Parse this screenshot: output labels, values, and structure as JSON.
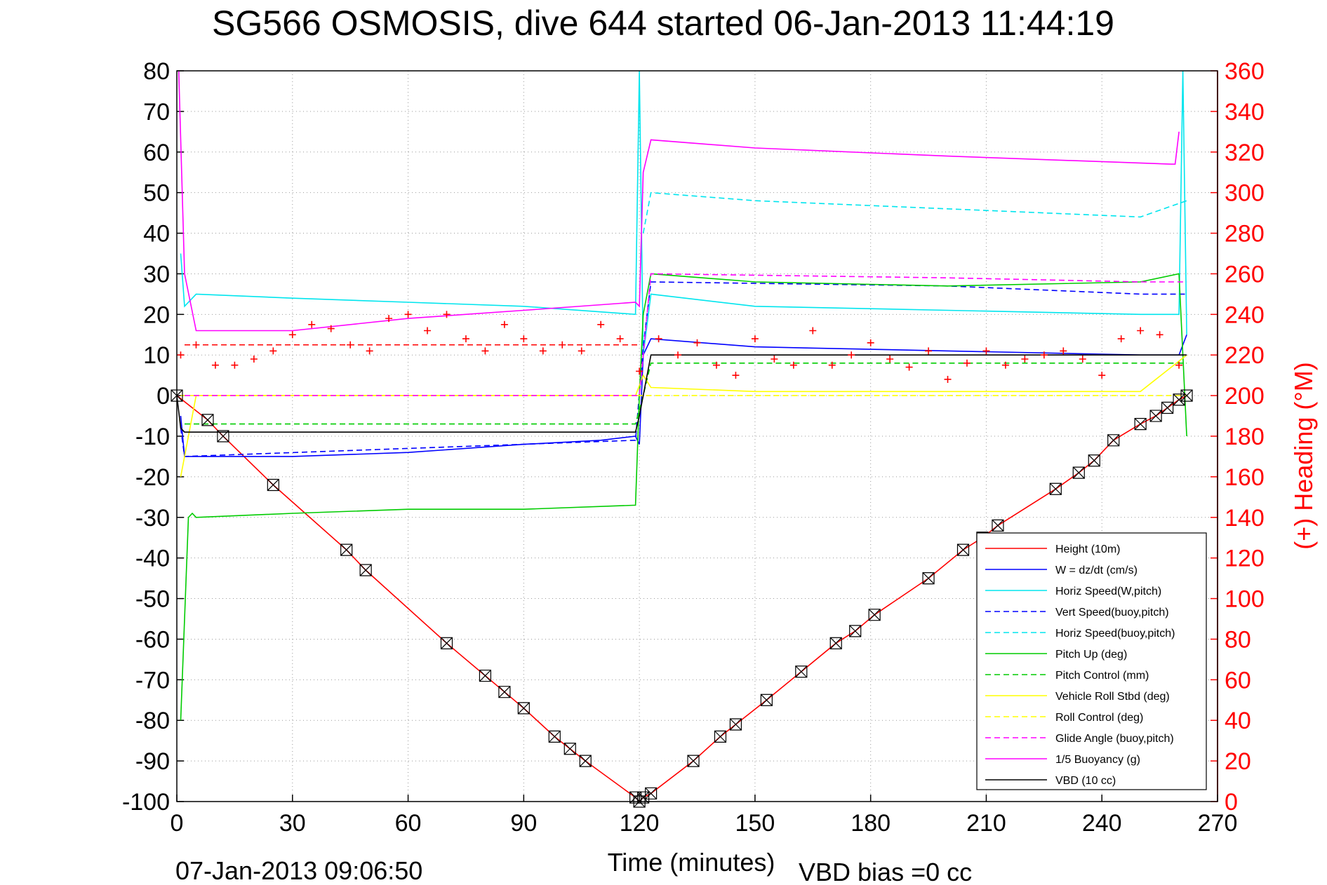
{
  "chart_data": {
    "type": "line",
    "title": "SG566 OSMOSIS, dive 644 started 06-Jan-2013 11:44:19",
    "xlabel": "Time (minutes)",
    "ylabel": "",
    "ylabel_right": "(+) Heading (°M)",
    "xlim": [
      0,
      270
    ],
    "ylim": [
      -100,
      80
    ],
    "ylim_right": [
      0,
      360
    ],
    "x_ticks": [
      0,
      30,
      60,
      90,
      120,
      150,
      180,
      210,
      240,
      270
    ],
    "y_ticks": [
      80,
      70,
      60,
      50,
      40,
      30,
      20,
      10,
      0,
      -10,
      -20,
      -30,
      -40,
      -50,
      -60,
      -70,
      -80,
      -90,
      -100
    ],
    "y_ticks_right": [
      360,
      340,
      320,
      300,
      280,
      260,
      240,
      220,
      200,
      180,
      160,
      140,
      120,
      100,
      80,
      60,
      40,
      20,
      0
    ],
    "grid": true,
    "legend_position": "bottom-right",
    "footer_left": "07-Jan-2013 09:06:50",
    "footer_right": "VBD bias =0 cc",
    "series": [
      {
        "name": "Height (10m)",
        "color": "#ff0000",
        "style": "solid",
        "x": [
          0,
          8,
          12,
          25,
          44,
          49,
          70,
          80,
          85,
          90,
          98,
          102,
          106,
          119,
          120,
          121,
          123,
          134,
          141,
          145,
          153,
          162,
          171,
          176,
          181,
          195,
          204,
          209,
          213,
          228,
          234,
          238,
          243,
          250,
          254,
          257,
          260,
          262
        ],
        "y": [
          0,
          -6,
          -10,
          -22,
          -38,
          -43,
          -61,
          -69,
          -73,
          -77,
          -84,
          -87,
          -90,
          -99,
          -100,
          -99,
          -98,
          -90,
          -84,
          -81,
          -75,
          -68,
          -61,
          -58,
          -54,
          -45,
          -38,
          -35,
          -32,
          -23,
          -19,
          -16,
          -11,
          -7,
          -5,
          -3,
          -1,
          0
        ]
      },
      {
        "name": "W = dz/dt (cm/s)",
        "color": "#0000ff",
        "style": "solid",
        "x": [
          1,
          2,
          5,
          30,
          60,
          90,
          110,
          119,
          120,
          121,
          123,
          150,
          200,
          250,
          260,
          262
        ],
        "y": [
          -5,
          -15,
          -15,
          -15,
          -14,
          -12,
          -11,
          -10,
          -12,
          10,
          14,
          12,
          11,
          10,
          10,
          15
        ]
      },
      {
        "name": "Horiz Speed(W,pitch)",
        "color": "#00e5ee",
        "style": "solid",
        "x": [
          1,
          2,
          5,
          30,
          60,
          90,
          119,
          120,
          121,
          123,
          150,
          200,
          250,
          260,
          261,
          262
        ],
        "y": [
          35,
          22,
          25,
          24,
          23,
          22,
          20,
          80,
          10,
          25,
          22,
          21,
          20,
          20,
          80,
          15
        ]
      },
      {
        "name": "Vert Speed(buoy,pitch)",
        "color": "#0000ff",
        "style": "dashed",
        "x": [
          1,
          2,
          119,
          121,
          123,
          200,
          250,
          262
        ],
        "y": [
          -8,
          -15,
          -11,
          12,
          28,
          27,
          25,
          25
        ]
      },
      {
        "name": "Horiz Speed(buoy,pitch)",
        "color": "#00e5ee",
        "style": "dashed",
        "x": [
          121,
          123,
          150,
          200,
          250,
          262
        ],
        "y": [
          40,
          50,
          48,
          46,
          44,
          48
        ]
      },
      {
        "name": "Pitch Up (deg)",
        "color": "#00cc00",
        "style": "solid",
        "x": [
          1,
          3,
          4,
          5,
          30,
          60,
          90,
          119,
          120,
          121,
          123,
          150,
          200,
          250,
          260,
          262
        ],
        "y": [
          -80,
          -30,
          -29,
          -30,
          -29,
          -28,
          -28,
          -27,
          0,
          20,
          30,
          28,
          27,
          28,
          30,
          -10
        ]
      },
      {
        "name": "Pitch Control (mm)",
        "color": "#00cc00",
        "style": "dashed",
        "x": [
          2,
          119,
          121,
          123,
          262
        ],
        "y": [
          -7,
          -7,
          0,
          8,
          8
        ]
      },
      {
        "name": "Vehicle Roll Stbd (deg)",
        "color": "#ffff00",
        "style": "solid",
        "x": [
          1,
          5,
          10,
          20,
          60,
          90,
          119,
          121,
          123,
          150,
          200,
          250,
          262
        ],
        "y": [
          -20,
          0,
          0,
          0,
          0,
          0,
          0,
          5,
          2,
          1,
          1,
          1,
          10
        ]
      },
      {
        "name": "Roll Control (deg)",
        "color": "#ffff00",
        "style": "dashed",
        "x": [
          1,
          119,
          121,
          262
        ],
        "y": [
          0,
          0,
          0,
          0
        ]
      },
      {
        "name": "Glide Angle (buoy,pitch)",
        "color": "#ff00ff",
        "style": "dashed",
        "x": [
          2,
          120,
          123,
          200,
          250,
          262
        ],
        "y": [
          0,
          0,
          30,
          29,
          28,
          28
        ]
      },
      {
        "name": "1/5 Buoyancy (g)",
        "color": "#ff00ff",
        "style": "solid",
        "x": [
          0.5,
          2,
          5,
          30,
          60,
          90,
          119,
          120,
          121,
          123,
          150,
          200,
          258,
          259,
          260
        ],
        "y": [
          80,
          30,
          16,
          16,
          19,
          21,
          23,
          22,
          55,
          63,
          61,
          59,
          57,
          57,
          65
        ]
      },
      {
        "name": "VBD (10 cc)",
        "color": "#000000",
        "style": "solid",
        "x": [
          0,
          1,
          2,
          119,
          120,
          121,
          123,
          262
        ],
        "y": [
          0,
          -8,
          -9,
          -9,
          -5,
          0,
          10,
          10
        ]
      }
    ],
    "heading_series": {
      "name": "Heading",
      "color": "#ff0000",
      "marker": "+",
      "x": [
        1,
        5,
        10,
        15,
        20,
        25,
        30,
        35,
        40,
        45,
        50,
        55,
        60,
        65,
        70,
        75,
        80,
        85,
        90,
        95,
        100,
        105,
        110,
        115,
        120,
        125,
        130,
        135,
        140,
        145,
        150,
        155,
        160,
        165,
        170,
        175,
        180,
        185,
        190,
        195,
        200,
        205,
        210,
        215,
        220,
        225,
        230,
        235,
        240,
        245,
        250,
        255,
        260
      ],
      "y": [
        220,
        225,
        215,
        215,
        218,
        222,
        230,
        235,
        233,
        225,
        222,
        238,
        240,
        232,
        240,
        228,
        222,
        235,
        228,
        222,
        225,
        222,
        235,
        228,
        212,
        228,
        220,
        226,
        215,
        210,
        228,
        218,
        215,
        232,
        215,
        220,
        226,
        218,
        214,
        222,
        208,
        216,
        222,
        215,
        218,
        220,
        222,
        218,
        210,
        228,
        232,
        230,
        215
      ]
    },
    "heading_reference": {
      "color": "#ff0000",
      "style": "dashed",
      "y": 225,
      "xlim": [
        2,
        120
      ]
    }
  }
}
